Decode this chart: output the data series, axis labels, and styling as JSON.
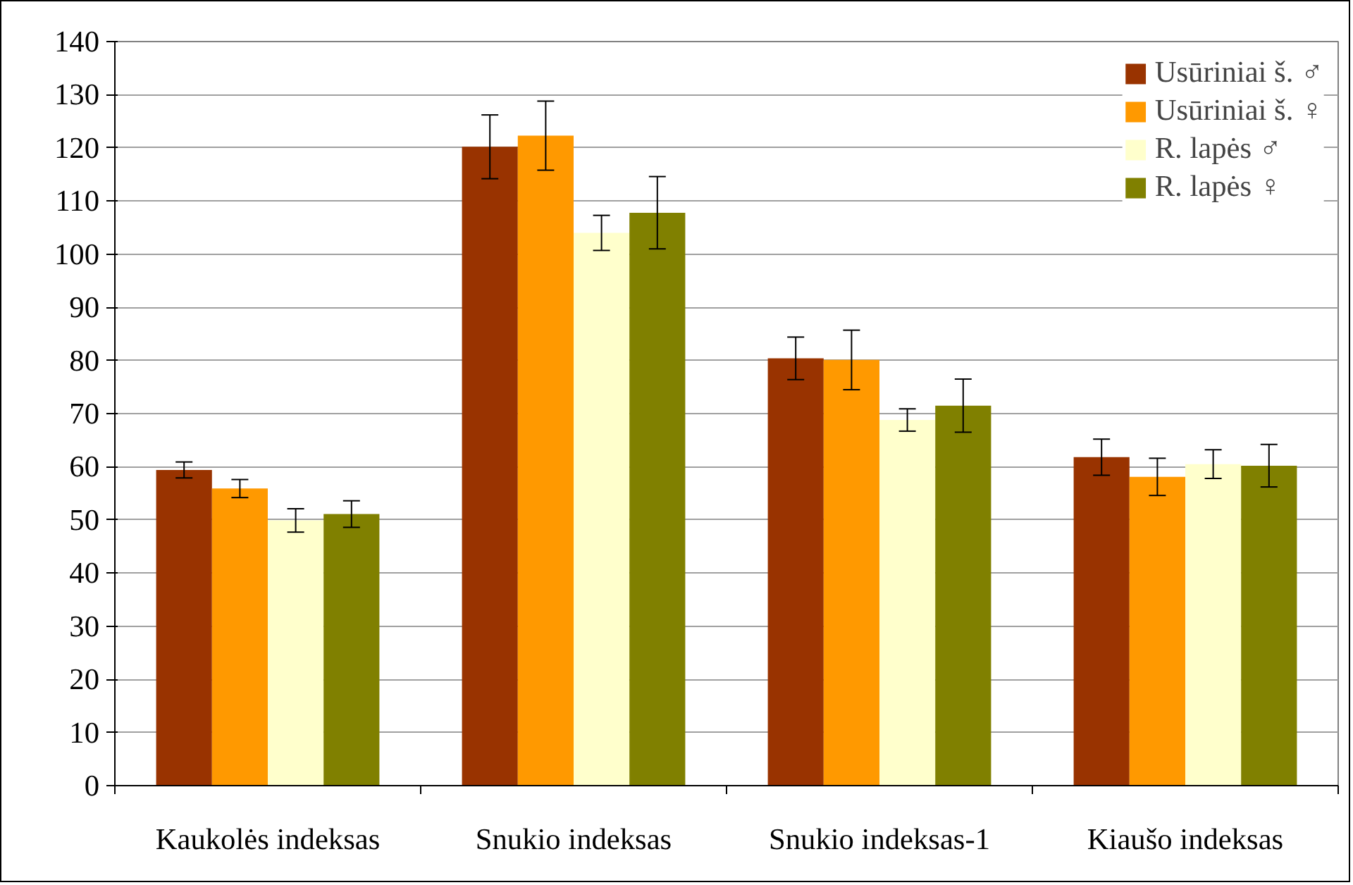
{
  "chart_data": {
    "type": "bar",
    "categories": [
      "Kaukolės indeksas",
      "Snukio indeksas",
      "Snukio indeksas-1",
      "Kiaušo indeksas"
    ],
    "series": [
      {
        "name": "Usūriniai š. ♂",
        "color": "#993300",
        "values": [
          59.4,
          120.2,
          80.4,
          61.8
        ],
        "errors": [
          1.5,
          6,
          4,
          3.4
        ]
      },
      {
        "name": "Usūriniai š. ♀",
        "color": "#ff9900",
        "values": [
          55.9,
          122.3,
          80.1,
          58.1
        ],
        "errors": [
          1.7,
          6.5,
          5.6,
          3.5
        ]
      },
      {
        "name": "R. lapės ♂",
        "color": "#ffffcc",
        "values": [
          49.9,
          104.0,
          68.8,
          60.5
        ],
        "errors": [
          2.2,
          3.3,
          2.1,
          2.7
        ]
      },
      {
        "name": "R. lapės ♀",
        "color": "#808000",
        "values": [
          51.1,
          107.8,
          71.5,
          60.2
        ],
        "errors": [
          2.5,
          6.8,
          5,
          4
        ]
      }
    ],
    "ylim": [
      0,
      140
    ],
    "yticks": [
      0,
      10,
      20,
      30,
      40,
      50,
      60,
      70,
      80,
      90,
      100,
      110,
      120,
      130,
      140
    ],
    "grid": "y",
    "legend": "top right"
  }
}
